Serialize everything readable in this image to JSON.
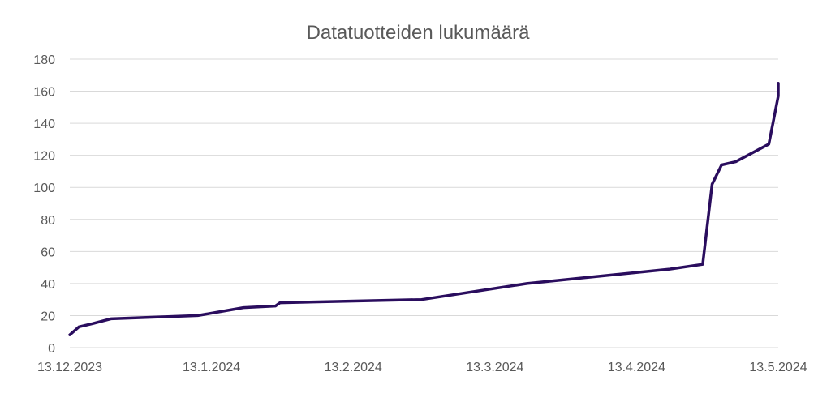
{
  "chart_data": {
    "type": "line",
    "title": "Datatuotteiden lukumäärä",
    "xlabel": "",
    "ylabel": "",
    "ylim": [
      0,
      180
    ],
    "xlim": [
      "2023-12-13",
      "2024-05-13"
    ],
    "y_ticks": [
      0,
      20,
      40,
      60,
      80,
      100,
      120,
      140,
      160,
      180
    ],
    "x_ticks": [
      {
        "date": "2023-12-13",
        "label": "13.12.2023"
      },
      {
        "date": "2024-01-13",
        "label": "13.1.2024"
      },
      {
        "date": "2024-02-13",
        "label": "13.2.2024"
      },
      {
        "date": "2024-03-13",
        "label": "13.3.2024"
      },
      {
        "date": "2024-04-13",
        "label": "13.4.2024"
      },
      {
        "date": "2024-05-13",
        "label": "13.5.2024"
      }
    ],
    "grid": true,
    "legend": "none",
    "series": [
      {
        "color": "#2a0d5e",
        "points": [
          {
            "x": "2023-12-13",
            "y": 8
          },
          {
            "x": "2023-12-15",
            "y": 13
          },
          {
            "x": "2023-12-18",
            "y": 15
          },
          {
            "x": "2023-12-22",
            "y": 18
          },
          {
            "x": "2024-01-10",
            "y": 20
          },
          {
            "x": "2024-01-20",
            "y": 25
          },
          {
            "x": "2024-01-27",
            "y": 26
          },
          {
            "x": "2024-01-28",
            "y": 28
          },
          {
            "x": "2024-02-27",
            "y": 30
          },
          {
            "x": "2024-03-20",
            "y": 40
          },
          {
            "x": "2024-04-20",
            "y": 49
          },
          {
            "x": "2024-04-27",
            "y": 52
          },
          {
            "x": "2024-04-29",
            "y": 102
          },
          {
            "x": "2024-05-01",
            "y": 114
          },
          {
            "x": "2024-05-04",
            "y": 116
          },
          {
            "x": "2024-05-11",
            "y": 127
          },
          {
            "x": "2024-05-13",
            "y": 157
          },
          {
            "x": "2024-05-20",
            "y": 165
          }
        ]
      }
    ]
  }
}
